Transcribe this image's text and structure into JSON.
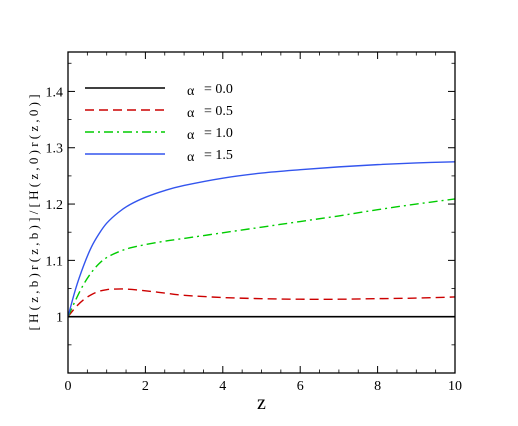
{
  "chart_data": {
    "type": "line",
    "xlabel": "z",
    "ylabel": "[ H ( z , b ) r ( z , b ) ] / [ H ( z , 0 ) r ( z , 0 ) ]",
    "xlim": [
      0,
      10
    ],
    "ylim": [
      0.9,
      1.47
    ],
    "xticks": [
      0,
      2,
      4,
      6,
      8,
      10
    ],
    "xtick_labels": [
      "0",
      "2",
      "4",
      "6",
      "8",
      "10"
    ],
    "yticks": [
      1.0,
      1.1,
      1.2,
      1.3,
      1.4
    ],
    "ytick_labels": [
      "1",
      "1.1",
      "1.2",
      "1.3",
      "1.4"
    ],
    "grid": false,
    "legend_position": "top-left",
    "series": [
      {
        "name": "α = 0.0",
        "symbol": "α",
        "label": "= 0.0",
        "color": "#000000",
        "dash": "solid",
        "x": [
          0,
          10
        ],
        "y": [
          1.0,
          1.0
        ]
      },
      {
        "name": "α = 0.5",
        "symbol": "α",
        "label": "= 0.5",
        "color": "#cc0000",
        "dash": "dashed",
        "x": [
          0,
          0.2,
          0.4,
          0.6,
          0.8,
          1.0,
          1.2,
          1.5,
          2.0,
          2.5,
          3.0,
          4.0,
          5.0,
          6.0,
          7.0,
          8.0,
          9.0,
          10.0
        ],
        "y": [
          1.0,
          1.017,
          1.03,
          1.039,
          1.045,
          1.048,
          1.049,
          1.049,
          1.046,
          1.042,
          1.038,
          1.034,
          1.032,
          1.031,
          1.031,
          1.032,
          1.033,
          1.035
        ]
      },
      {
        "name": "α = 1.0",
        "symbol": "α",
        "label": "= 1.0",
        "color": "#00cc00",
        "dash": "dashdot",
        "x": [
          0,
          0.2,
          0.4,
          0.6,
          0.8,
          1.0,
          1.3,
          1.6,
          2.0,
          2.5,
          3.0,
          4.0,
          5.0,
          6.0,
          7.0,
          8.0,
          9.0,
          10.0
        ],
        "y": [
          1.0,
          1.03,
          1.057,
          1.078,
          1.094,
          1.105,
          1.115,
          1.122,
          1.128,
          1.134,
          1.139,
          1.149,
          1.159,
          1.169,
          1.179,
          1.19,
          1.2,
          1.209
        ]
      },
      {
        "name": "α = 1.5",
        "symbol": "α",
        "label": "= 1.5",
        "color": "#3355ee",
        "dash": "dotted-solid",
        "x": [
          0,
          0.2,
          0.4,
          0.6,
          0.8,
          1.0,
          1.3,
          1.6,
          2.0,
          2.5,
          3.0,
          4.0,
          5.0,
          6.0,
          7.0,
          8.0,
          9.0,
          10.0
        ],
        "y": [
          1.0,
          1.05,
          1.09,
          1.123,
          1.147,
          1.166,
          1.185,
          1.199,
          1.212,
          1.224,
          1.233,
          1.246,
          1.255,
          1.261,
          1.266,
          1.27,
          1.273,
          1.275
        ]
      }
    ]
  }
}
